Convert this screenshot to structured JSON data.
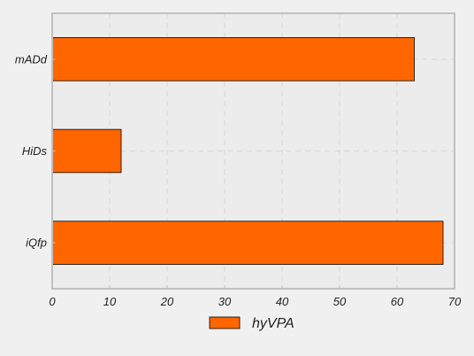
{
  "chart_data": {
    "type": "bar",
    "orientation": "horizontal",
    "categories": [
      "mADd",
      "HiDs",
      "iQfp"
    ],
    "series": [
      {
        "name": "hyVPA",
        "values": [
          63,
          12,
          68
        ]
      }
    ],
    "xlim": [
      0,
      70
    ],
    "x_ticks": [
      0,
      10,
      20,
      30,
      40,
      50,
      60,
      70
    ],
    "grid": true,
    "legend_position": "bottom-center",
    "bar_color": "#ff6600",
    "plot_background": "#ececec",
    "frame_color": "#c0c0c0"
  }
}
